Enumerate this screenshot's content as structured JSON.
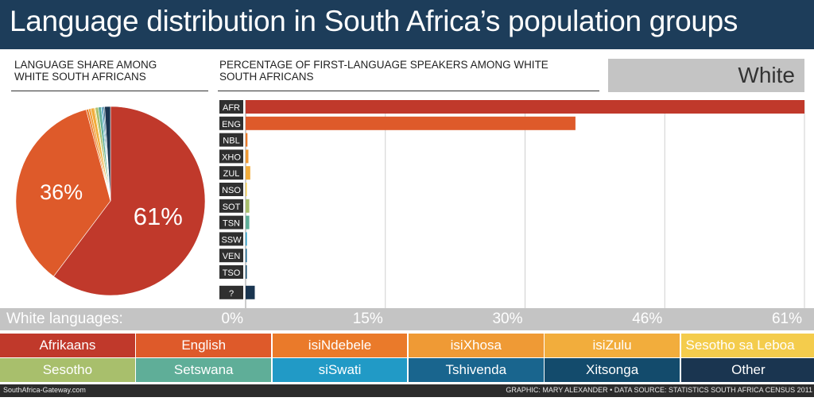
{
  "title": "Language distribution in South Africa’s population groups",
  "pie_header": "LANGUAGE SHARE AMONG WHITE SOUTH AFRICANS",
  "bar_header": "PERCENTAGE OF FIRST-LANGUAGE SPEAKERS AMONG WHITE SOUTH AFRICANS",
  "group": "White",
  "axis_caption": "White languages:",
  "chart_data": [
    {
      "type": "pie",
      "categories": [
        "Afrikaans",
        "English",
        "isiNdebele",
        "isiXhosa",
        "isiZulu",
        "Sesotho sa Leboa",
        "Sesotho",
        "Setswana",
        "siSwati",
        "Tshivenda",
        "Xitsonga",
        "Other"
      ],
      "values": [
        61,
        36,
        0.4,
        0.4,
        0.6,
        0.2,
        0.5,
        0.5,
        0.2,
        0.2,
        0.2,
        1.0
      ],
      "labels": [
        "61%",
        "36%"
      ]
    },
    {
      "type": "bar",
      "categories": [
        "AFR",
        "ENG",
        "NBL",
        "XHO",
        "ZUL",
        "NSO",
        "SOT",
        "TSN",
        "SSW",
        "VEN",
        "TSO",
        "?"
      ],
      "values": [
        61,
        36,
        0.2,
        0.3,
        0.5,
        0.1,
        0.4,
        0.4,
        0.1,
        0.1,
        0.1,
        1.0
      ],
      "xlim": [
        0,
        61
      ],
      "ticks": [
        "0%",
        "15%",
        "30%",
        "46%",
        "61%"
      ],
      "tick_values": [
        0,
        15.25,
        30.5,
        45.75,
        61
      ]
    }
  ],
  "legend": [
    {
      "label": "Afrikaans",
      "color": "#c0392b"
    },
    {
      "label": "English",
      "color": "#de5a2a"
    },
    {
      "label": "isiNdebele",
      "color": "#ea7a2a"
    },
    {
      "label": "isiXhosa",
      "color": "#ef9a35"
    },
    {
      "label": "isiZulu",
      "color": "#f2ad3c"
    },
    {
      "label": "Sesotho sa Leboa",
      "color": "#f4cc4c"
    },
    {
      "label": "Sesotho",
      "color": "#a8bf6c"
    },
    {
      "label": "Setswana",
      "color": "#5fae98"
    },
    {
      "label": "siSwati",
      "color": "#219ac6"
    },
    {
      "label": "Tshivenda",
      "color": "#19658e"
    },
    {
      "label": "Xitsonga",
      "color": "#134b6c"
    },
    {
      "label": "Other",
      "color": "#1a3550"
    }
  ],
  "footer": {
    "left": "SouthAfrica-Gateway.com",
    "right": "GRAPHIC: MARY ALEXANDER • DATA SOURCE: STATISTICS SOUTH AFRICA CENSUS 2011"
  }
}
